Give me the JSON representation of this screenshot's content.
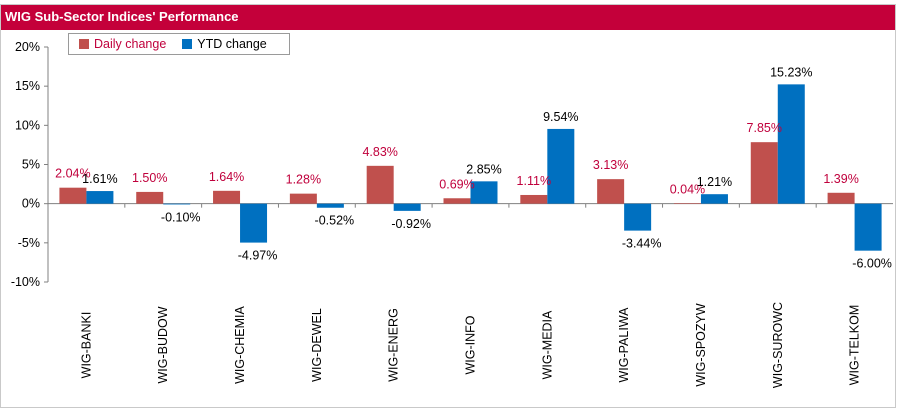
{
  "title": "WIG Sub-Sector Indices' Performance",
  "colors": {
    "daily": "#c0504d",
    "ytd": "#0070c0",
    "daily_label": "#c0003c",
    "ytd_label": "#000000",
    "title_bg": "#c4003a"
  },
  "chart_data": {
    "type": "bar",
    "title": "WIG Sub-Sector Indices' Performance",
    "categories": [
      "WIG-BANKI",
      "WIG-BUDOW",
      "WIG-CHEMIA",
      "WIG-DEWEL",
      "WIG-ENERG",
      "WIG-INFO",
      "WIG-MEDIA",
      "WIG-PALIWA",
      "WIG-SPOZYW",
      "WIG-SUROWC",
      "WIG-TELKOM"
    ],
    "series": [
      {
        "name": "Daily change",
        "values": [
          2.04,
          1.5,
          1.64,
          1.28,
          4.83,
          0.69,
          1.11,
          3.13,
          0.04,
          7.85,
          1.39
        ],
        "labels": [
          "2.04%",
          "1.50%",
          "1.64%",
          "1.28%",
          "4.83%",
          "0.69%",
          "1.11%",
          "3.13%",
          "0.04%",
          "7.85%",
          "1.39%"
        ]
      },
      {
        "name": "YTD change",
        "values": [
          1.61,
          -0.1,
          -4.97,
          -0.52,
          -0.92,
          2.85,
          9.54,
          -3.44,
          1.21,
          15.23,
          -6.0
        ],
        "labels": [
          "1.61%",
          "-0.10%",
          "-4.97%",
          "-0.52%",
          "-0.92%",
          "2.85%",
          "9.54%",
          "-3.44%",
          "1.21%",
          "15.23%",
          "-6.00%"
        ]
      }
    ],
    "yticks": [
      20,
      15,
      10,
      5,
      0,
      -5,
      -10
    ],
    "ytick_labels": [
      "20%",
      "15%",
      "10%",
      "5%",
      "0%",
      "-5%",
      "-10%"
    ],
    "ylim": [
      -10,
      20
    ],
    "xlabel": "",
    "ylabel": "",
    "grid": false,
    "legend": "top-left"
  }
}
